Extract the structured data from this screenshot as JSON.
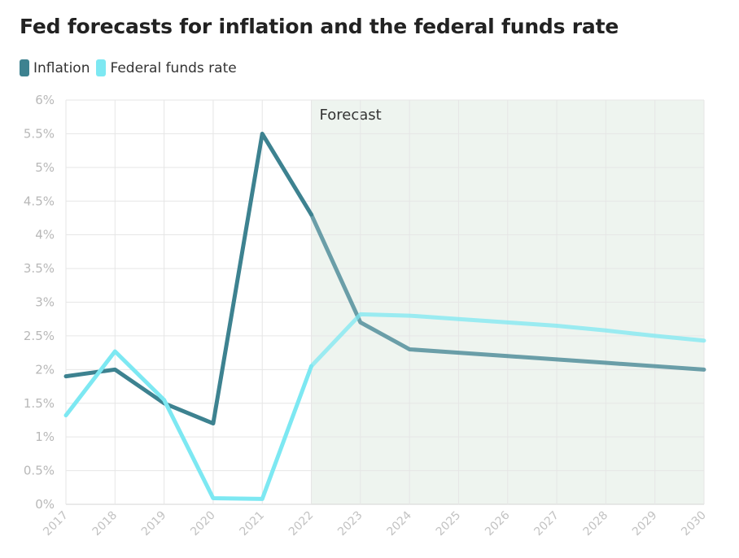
{
  "chart_data": {
    "type": "line",
    "title": "Fed forecasts for inflation and the federal funds rate",
    "x": [
      "2017",
      "2018",
      "2019",
      "2020",
      "2021",
      "2022",
      "2023",
      "2024",
      "2025",
      "2026",
      "2027",
      "2028",
      "2029",
      "2030"
    ],
    "series": [
      {
        "name": "Inflation",
        "color": "#3d8290",
        "values": [
          1.9,
          2.0,
          1.5,
          1.2,
          5.5,
          4.3,
          2.7,
          2.3,
          2.25,
          2.2,
          2.15,
          2.1,
          2.05,
          2.0
        ]
      },
      {
        "name": "Federal funds rate",
        "color": "#7de8f2",
        "values": [
          1.32,
          2.27,
          1.55,
          0.09,
          0.08,
          2.05,
          2.82,
          2.8,
          2.75,
          2.7,
          2.65,
          2.58,
          2.5,
          2.43
        ]
      }
    ],
    "y_ticks": [
      "0%",
      "0.5%",
      "1%",
      "1.5%",
      "2%",
      "2.5%",
      "3%",
      "3.5%",
      "4%",
      "4.5%",
      "5%",
      "5.5%",
      "6%"
    ],
    "ylim": [
      0,
      6
    ],
    "forecast": {
      "label": "Forecast",
      "start": "2022",
      "end": "2030",
      "shade_color": "#eef4ef"
    },
    "grid": true,
    "legend_position": "top-left"
  }
}
